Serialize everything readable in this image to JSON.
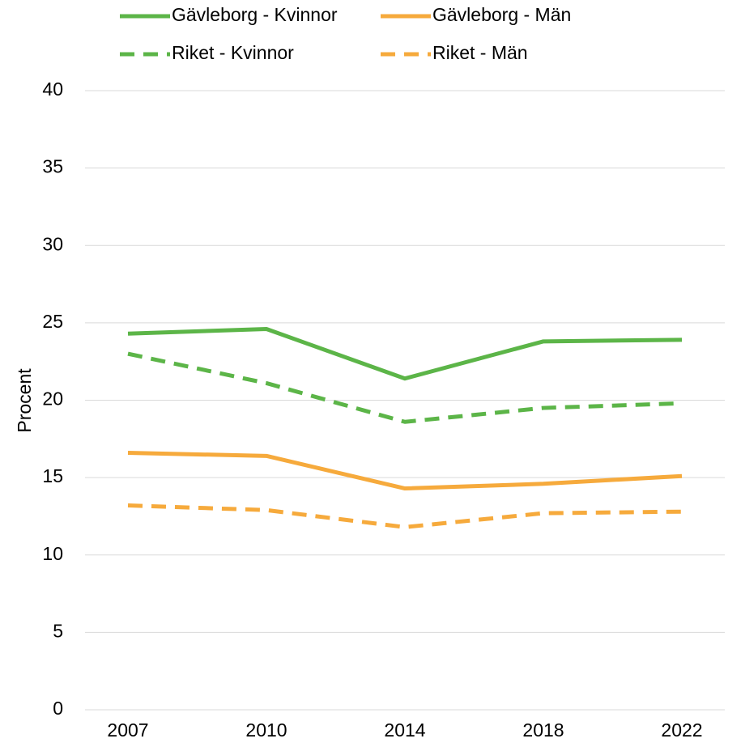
{
  "chart_data": {
    "type": "line",
    "y_label": "Procent",
    "categories": [
      "2007",
      "2010",
      "2014",
      "2018",
      "2022"
    ],
    "series": [
      {
        "name": "Gävleborg - Kvinnor",
        "color": "#5cb548",
        "line_style": "solid",
        "values": [
          24.3,
          24.6,
          21.4,
          23.8,
          23.9
        ]
      },
      {
        "name": "Gävleborg - Män",
        "color": "#f6aa3c",
        "line_style": "solid",
        "values": [
          16.6,
          16.4,
          14.3,
          14.6,
          15.1
        ]
      },
      {
        "name": "Riket - Kvinnor",
        "color": "#5cb548",
        "line_style": "dashed",
        "values": [
          23.0,
          21.1,
          18.6,
          19.5,
          19.8
        ]
      },
      {
        "name": "Riket - Män",
        "color": "#f6aa3c",
        "line_style": "dashed",
        "values": [
          13.2,
          12.9,
          11.8,
          12.7,
          12.8
        ]
      }
    ],
    "ylim": [
      0,
      40
    ],
    "yticks": [
      0,
      5,
      10,
      15,
      20,
      25,
      30,
      35,
      40
    ],
    "grid": true
  }
}
